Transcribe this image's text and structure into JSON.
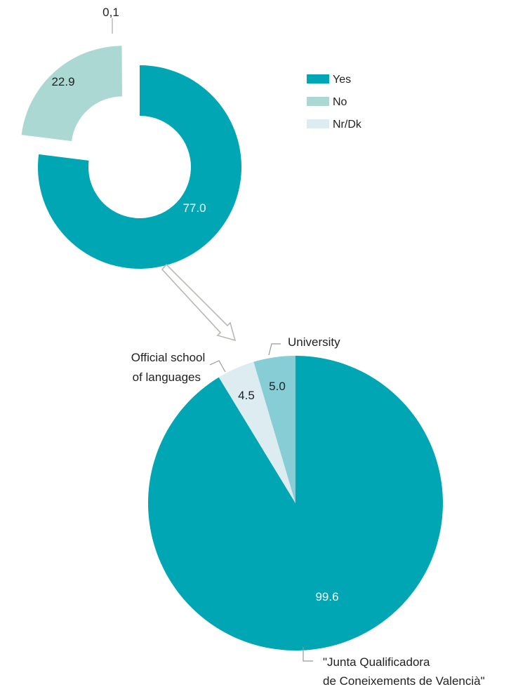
{
  "colors": {
    "yes": "#00a6b3",
    "no": "#acd8d4",
    "nrdk": "#dcecf0",
    "university": "#86cdd6",
    "official": "#dcecf0",
    "junta": "#00a6b3",
    "leader": "#999999",
    "arrow": "#b8b8b3"
  },
  "chart_data": [
    {
      "type": "pie",
      "variant": "donut",
      "legend": {
        "position": "top-right",
        "entries": [
          {
            "key": "yes",
            "label": "Yes"
          },
          {
            "key": "no",
            "label": "No"
          },
          {
            "key": "nrdk",
            "label": "Nr/Dk"
          }
        ]
      },
      "slices": [
        {
          "key": "yes",
          "label": "Yes",
          "value": 77.0,
          "display": "77.0"
        },
        {
          "key": "no",
          "label": "No",
          "value": 22.9,
          "display": "22.9"
        },
        {
          "key": "nrdk",
          "label": "Nr/Dk",
          "value": 0.1,
          "display": "0,1"
        }
      ]
    },
    {
      "type": "pie",
      "slices": [
        {
          "key": "junta",
          "label": "\"Junta Qualificadora\nde Coneixements de Valencià\"",
          "value": 99.6,
          "display": "99.6"
        },
        {
          "key": "official",
          "label": "Official school\nof languages",
          "value": 4.5,
          "display": "4.5"
        },
        {
          "key": "university",
          "label": "University",
          "value": 5.0,
          "display": "5.0"
        }
      ]
    }
  ]
}
